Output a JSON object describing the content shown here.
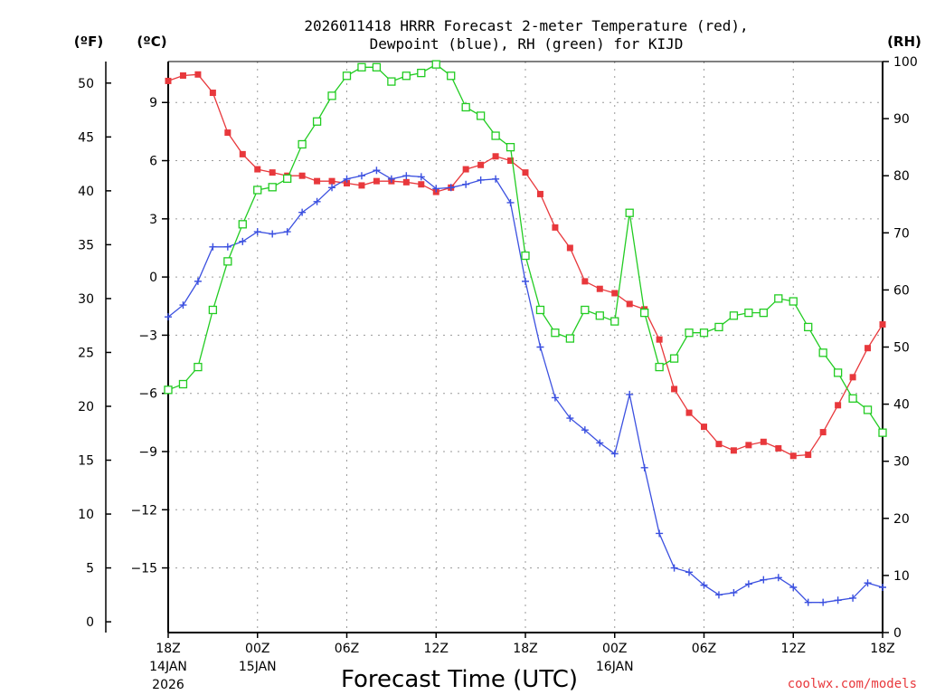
{
  "chart_data": {
    "type": "line",
    "title_line1": "2026011418 HRRR Forecast 2-meter Temperature (red),",
    "title_line2": "Dewpoint (blue), RH (green) for KIJD",
    "xlabel": "Forecast Time (UTC)",
    "credit": "coolwx.com/models",
    "units": {
      "fahrenheit": "(ºF)",
      "celsius": "(ºC)",
      "rh": "(RH)"
    },
    "x_range_hours": [
      0,
      48
    ],
    "c_range": [
      -18.333,
      11.111
    ],
    "rh_range": [
      0,
      100
    ],
    "f_ticks": [
      "0",
      "5",
      "10",
      "15",
      "20",
      "25",
      "30",
      "35",
      "40",
      "45",
      "50"
    ],
    "f_tick_values": [
      0,
      5,
      10,
      15,
      20,
      25,
      30,
      35,
      40,
      45,
      50
    ],
    "c_ticks": [
      "9",
      "6",
      "3",
      "0",
      "−3",
      "−6",
      "−9",
      "−12",
      "−15"
    ],
    "c_tick_values": [
      9,
      6,
      3,
      0,
      -3,
      -6,
      -9,
      -12,
      -15
    ],
    "rh_ticks": [
      "0",
      "10",
      "20",
      "30",
      "40",
      "50",
      "60",
      "70",
      "80",
      "90",
      "100"
    ],
    "rh_tick_values": [
      0,
      10,
      20,
      30,
      40,
      50,
      60,
      70,
      80,
      90,
      100
    ],
    "x_ticks": [
      {
        "h": 0,
        "label": "18Z",
        "sub1": "14JAN",
        "sub2": "2026"
      },
      {
        "h": 6,
        "label": "00Z",
        "sub1": "15JAN",
        "sub2": ""
      },
      {
        "h": 12,
        "label": "06Z",
        "sub1": "",
        "sub2": ""
      },
      {
        "h": 18,
        "label": "12Z",
        "sub1": "",
        "sub2": ""
      },
      {
        "h": 24,
        "label": "18Z",
        "sub1": "",
        "sub2": ""
      },
      {
        "h": 30,
        "label": "00Z",
        "sub1": "16JAN",
        "sub2": ""
      },
      {
        "h": 36,
        "label": "06Z",
        "sub1": "",
        "sub2": ""
      },
      {
        "h": 42,
        "label": "12Z",
        "sub1": "",
        "sub2": ""
      },
      {
        "h": 48,
        "label": "18Z",
        "sub1": "",
        "sub2": ""
      }
    ],
    "series": [
      {
        "name": "Temperature",
        "color": "#e8383c",
        "marker": "filled-square",
        "units": "F",
        "values": [
          50.2,
          50.7,
          50.8,
          49.1,
          45.4,
          43.4,
          42.0,
          41.7,
          41.4,
          41.4,
          40.9,
          40.9,
          40.7,
          40.5,
          40.9,
          40.9,
          40.8,
          40.6,
          39.9,
          40.3,
          42.0,
          42.4,
          43.2,
          42.8,
          41.7,
          39.7,
          36.6,
          34.7,
          31.6,
          30.9,
          30.5,
          29.5,
          29.0,
          26.2,
          21.6,
          19.4,
          18.1,
          16.5,
          15.9,
          16.4,
          16.7,
          16.1,
          15.4,
          15.5,
          17.6,
          20.1,
          22.7,
          25.4,
          27.6
        ]
      },
      {
        "name": "Dewpoint",
        "color": "#3b50e0",
        "marker": "plus",
        "units": "F",
        "values": [
          28.3,
          29.4,
          31.6,
          34.8,
          34.8,
          35.3,
          36.2,
          36.0,
          36.2,
          38.0,
          39.0,
          40.3,
          41.1,
          41.4,
          41.9,
          41.1,
          41.4,
          41.3,
          40.2,
          40.3,
          40.6,
          41.0,
          41.1,
          38.9,
          31.6,
          25.5,
          20.8,
          18.9,
          17.8,
          16.6,
          15.6,
          21.1,
          14.3,
          8.2,
          5.0,
          4.6,
          3.4,
          2.5,
          2.7,
          3.5,
          3.9,
          4.1,
          3.2,
          1.8,
          1.8,
          2.0,
          2.2,
          3.6,
          3.2
        ]
      },
      {
        "name": "Relative Humidity",
        "color": "#22cc22",
        "marker": "open-square",
        "units": "%",
        "values": [
          42.5,
          43.5,
          46.5,
          56.5,
          65.0,
          71.5,
          77.5,
          78.0,
          79.5,
          85.5,
          89.5,
          94.0,
          97.5,
          99.0,
          99.0,
          96.5,
          97.5,
          98.0,
          99.5,
          97.5,
          92.0,
          90.5,
          87.0,
          85.0,
          66.0,
          56.5,
          52.5,
          51.5,
          56.5,
          55.5,
          54.5,
          73.5,
          56.0,
          46.5,
          48.0,
          52.5,
          52.5,
          53.5,
          55.5,
          56.0,
          56.0,
          58.5,
          58.0,
          53.5,
          49.0,
          45.5,
          41.0,
          39.0,
          35.0
        ]
      }
    ]
  }
}
